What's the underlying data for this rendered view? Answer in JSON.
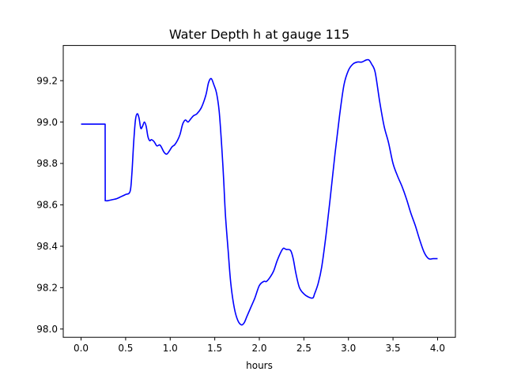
{
  "chart_data": {
    "type": "line",
    "title": "Water Depth h at gauge 115",
    "xlabel": "hours",
    "ylabel": "",
    "xlim": [
      -0.2,
      4.2
    ],
    "ylim": [
      97.96,
      99.37
    ],
    "xticks": [
      0.0,
      0.5,
      1.0,
      1.5,
      2.0,
      2.5,
      3.0,
      3.5,
      4.0
    ],
    "xtick_labels": [
      "0.0",
      "0.5",
      "1.0",
      "1.5",
      "2.0",
      "2.5",
      "3.0",
      "3.5",
      "4.0"
    ],
    "yticks": [
      98.0,
      98.2,
      98.4,
      98.6,
      98.8,
      99.0,
      99.2
    ],
    "ytick_labels": [
      "98.0",
      "98.2",
      "98.4",
      "98.6",
      "98.8",
      "99.0",
      "99.2"
    ],
    "grid": false,
    "series": [
      {
        "color": "#0000ff",
        "x": [
          0.0,
          0.1,
          0.2,
          0.27,
          0.271,
          0.3,
          0.35,
          0.4,
          0.45,
          0.5,
          0.55,
          0.57,
          0.59,
          0.61,
          0.63,
          0.65,
          0.67,
          0.69,
          0.71,
          0.73,
          0.75,
          0.77,
          0.79,
          0.82,
          0.85,
          0.88,
          0.9,
          0.93,
          0.96,
          0.99,
          1.02,
          1.05,
          1.08,
          1.11,
          1.14,
          1.17,
          1.2,
          1.23,
          1.26,
          1.3,
          1.35,
          1.4,
          1.43,
          1.46,
          1.49,
          1.52,
          1.55,
          1.58,
          1.6,
          1.62,
          1.65,
          1.68,
          1.72,
          1.76,
          1.8,
          1.83,
          1.86,
          1.9,
          1.95,
          2.0,
          2.05,
          2.08,
          2.12,
          2.16,
          2.2,
          2.24,
          2.27,
          2.3,
          2.35,
          2.38,
          2.41,
          2.45,
          2.5,
          2.55,
          2.6,
          2.62,
          2.66,
          2.7,
          2.75,
          2.8,
          2.85,
          2.9,
          2.95,
          3.0,
          3.05,
          3.1,
          3.15,
          3.2,
          3.23,
          3.26,
          3.3,
          3.35,
          3.4,
          3.45,
          3.5,
          3.55,
          3.6,
          3.65,
          3.7,
          3.75,
          3.8,
          3.85,
          3.9,
          3.95,
          4.0
        ],
        "y": [
          98.99,
          98.99,
          98.99,
          98.99,
          98.62,
          98.62,
          98.625,
          98.63,
          98.64,
          98.65,
          98.665,
          98.75,
          98.9,
          99.01,
          99.04,
          99.02,
          98.97,
          98.98,
          99.0,
          98.98,
          98.93,
          98.91,
          98.915,
          98.905,
          98.885,
          98.89,
          98.88,
          98.855,
          98.845,
          98.86,
          98.88,
          98.89,
          98.91,
          98.94,
          98.99,
          99.01,
          99.0,
          99.015,
          99.03,
          99.04,
          99.07,
          99.13,
          99.19,
          99.21,
          99.18,
          99.14,
          99.05,
          98.87,
          98.72,
          98.55,
          98.38,
          98.22,
          98.1,
          98.04,
          98.02,
          98.03,
          98.06,
          98.1,
          98.15,
          98.21,
          98.23,
          98.23,
          98.25,
          98.28,
          98.33,
          98.37,
          98.39,
          98.385,
          98.38,
          98.34,
          98.27,
          98.2,
          98.17,
          98.155,
          98.15,
          98.17,
          98.22,
          98.3,
          98.46,
          98.65,
          98.85,
          99.03,
          99.18,
          99.25,
          99.28,
          99.29,
          99.29,
          99.3,
          99.3,
          99.28,
          99.24,
          99.1,
          98.98,
          98.9,
          98.8,
          98.74,
          98.69,
          98.63,
          98.56,
          98.5,
          98.43,
          98.37,
          98.34,
          98.34,
          98.34
        ]
      }
    ]
  }
}
